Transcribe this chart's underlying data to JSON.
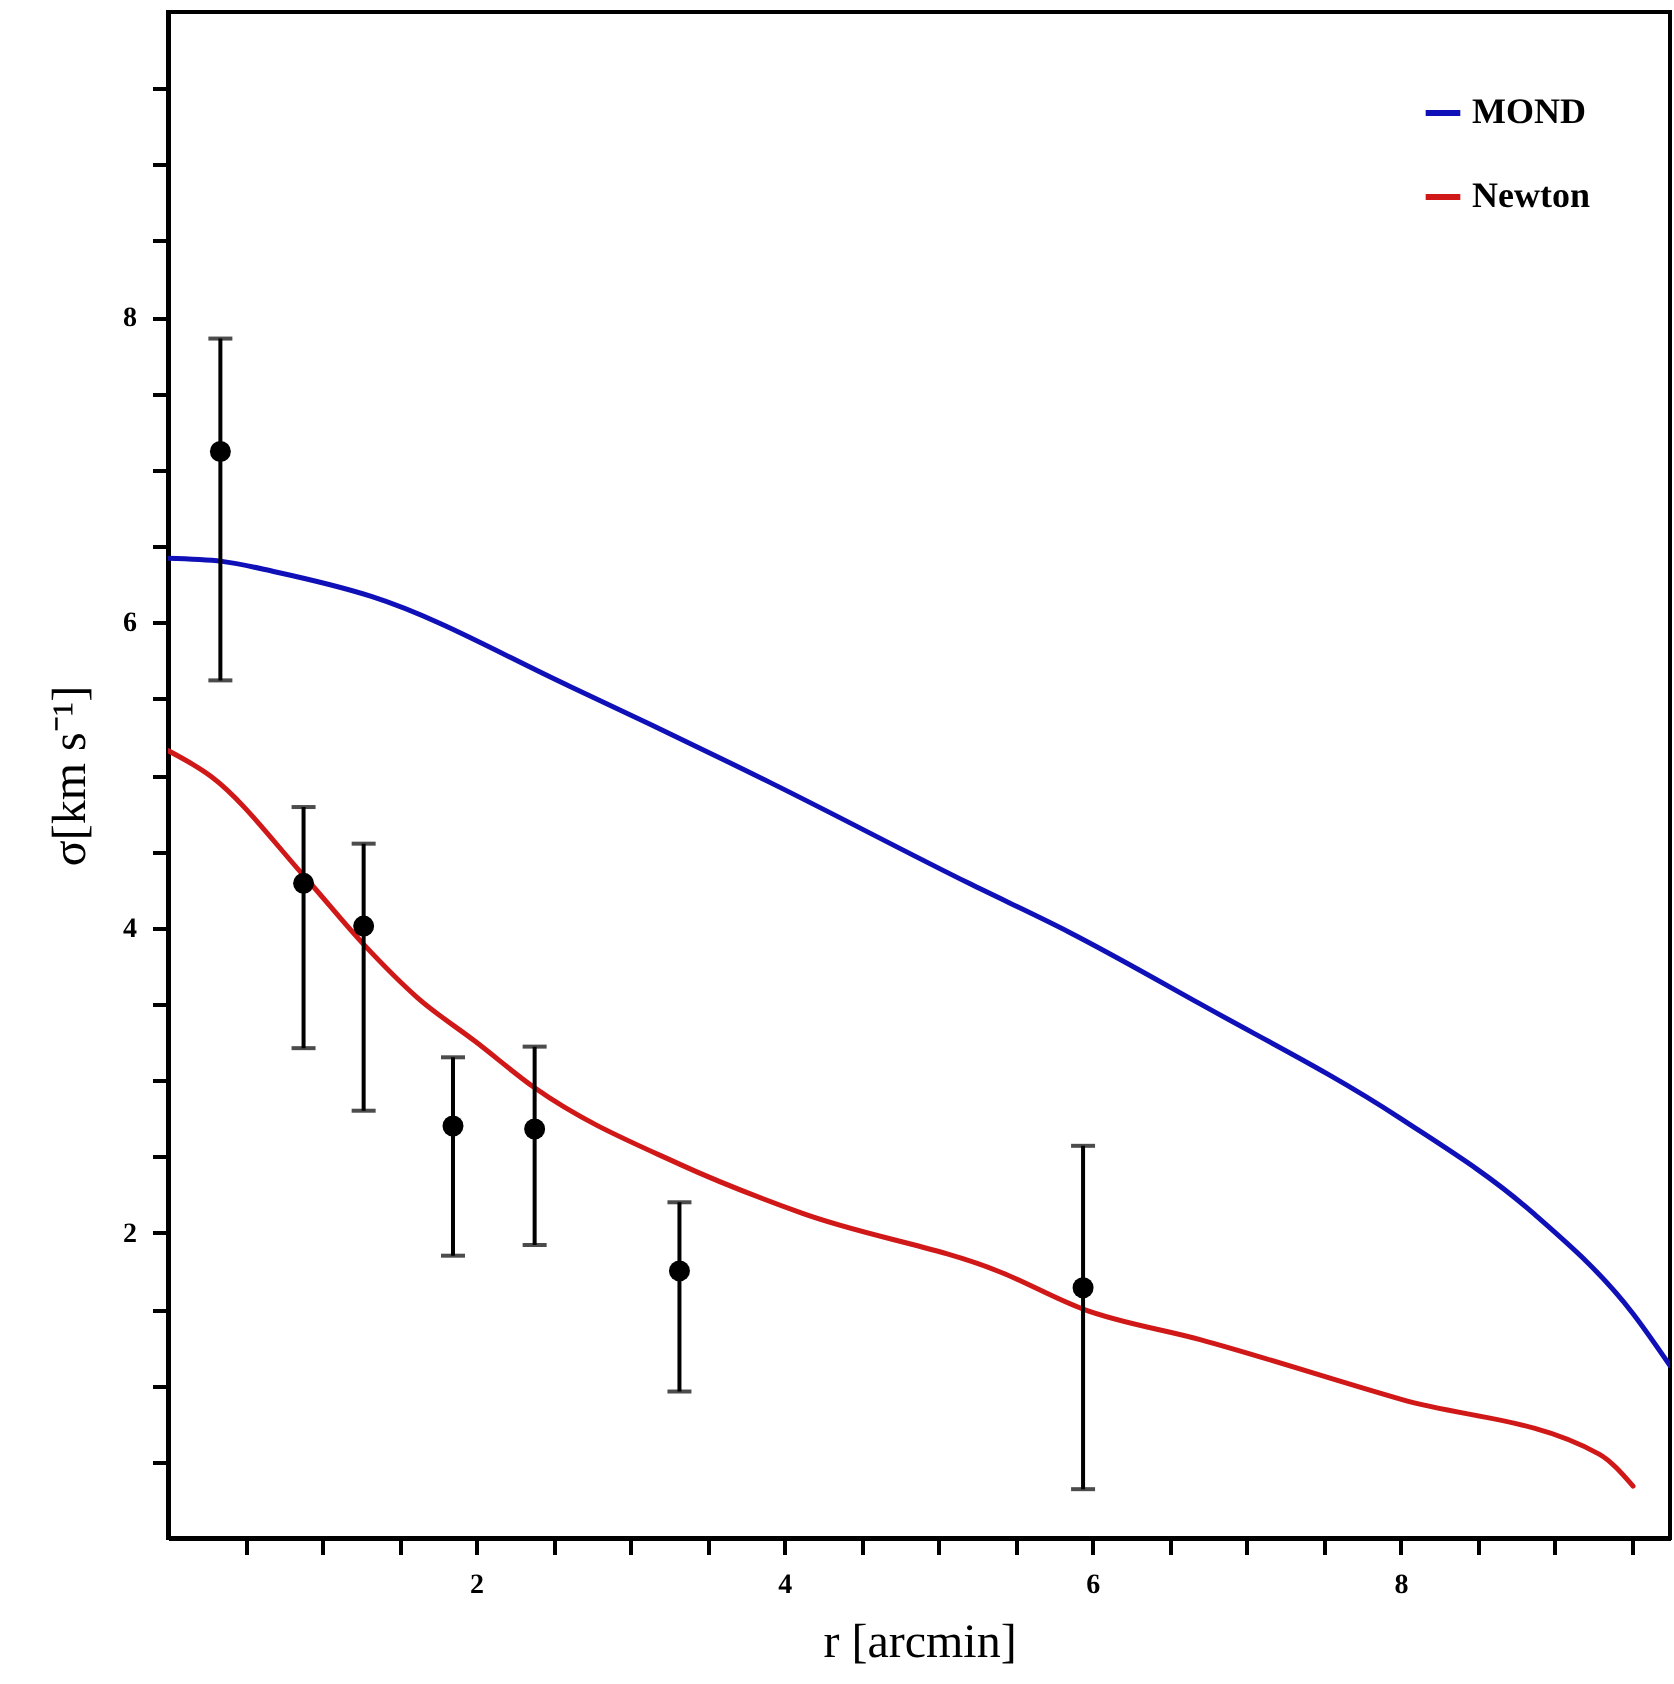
{
  "chart_data": {
    "type": "line",
    "xlabel": "r [arcmin]",
    "ylabel": "σ[km s⁻¹]",
    "xlim": [
      0,
      9.75
    ],
    "ylim": [
      0,
      10
    ],
    "xticks": [
      {
        "value": 0.5,
        "label": null
      },
      {
        "value": 1,
        "label": null
      },
      {
        "value": 1.5,
        "label": null
      },
      2,
      {
        "value": 2.5,
        "label": null
      },
      {
        "value": 3,
        "label": null
      },
      {
        "value": 3.5,
        "label": null
      },
      4,
      {
        "value": 4.5,
        "label": null
      },
      {
        "value": 5,
        "label": null
      },
      {
        "value": 5.5,
        "label": null
      },
      6,
      {
        "value": 6.5,
        "label": null
      },
      {
        "value": 7,
        "label": null
      },
      {
        "value": 7.5,
        "label": null
      },
      8,
      {
        "value": 8.5,
        "label": null
      },
      {
        "value": 9,
        "label": null
      },
      {
        "value": 9.5,
        "label": null
      }
    ],
    "yticks": [
      {
        "value": 0.5,
        "label": null
      },
      {
        "value": 1,
        "label": null
      },
      {
        "value": 1.5,
        "label": null
      },
      2,
      {
        "value": 2.5,
        "label": null
      },
      {
        "value": 3,
        "label": null
      },
      {
        "value": 3.5,
        "label": null
      },
      4,
      {
        "value": 4.5,
        "label": null
      },
      {
        "value": 5,
        "label": null
      },
      {
        "value": 5.5,
        "label": null
      },
      6,
      {
        "value": 6.5,
        "label": null
      },
      {
        "value": 7,
        "label": null
      },
      {
        "value": 7.5,
        "label": null
      },
      8,
      {
        "value": 8.5,
        "label": null
      },
      {
        "value": 9,
        "label": null
      },
      {
        "value": 9.5,
        "label": null
      }
    ],
    "legend": "top right",
    "line_style": "solid",
    "series": [
      {
        "name": "MOND",
        "color": "#1010b8",
        "x": [
          0,
          0.35,
          0.7,
          1.32,
          2.61,
          3.91,
          5.2,
          5.85,
          6.7,
          8.0,
          8.86,
          9.51,
          9.75
        ],
        "values": [
          6.42,
          6.4,
          6.33,
          6.17,
          5.58,
          4.95,
          4.29,
          3.97,
          3.5,
          2.75,
          2.13,
          1.47,
          1.13
        ]
      },
      {
        "name": "Newton",
        "color": "#d01818",
        "x": [
          0,
          0.28,
          0.89,
          1.27,
          1.62,
          2.0,
          2.38,
          3.32,
          4.11,
          5.41,
          5.94,
          6.7,
          8.0,
          9.29,
          9.51
        ],
        "values": [
          5.16,
          4.99,
          4.33,
          3.89,
          3.54,
          3.25,
          2.95,
          2.45,
          2.13,
          1.74,
          1.5,
          1.3,
          0.91,
          0.55,
          0.34
        ]
      },
      {
        "type": "scatter",
        "color": "#000000",
        "marker": "circle",
        "x": [
          0.34,
          0.88,
          1.27,
          1.85,
          2.38,
          3.32,
          5.94
        ],
        "values": [
          7.12,
          4.29,
          4.01,
          2.7,
          2.68,
          1.75,
          1.64
        ],
        "errors": [
          [
            5.62,
            7.86
          ],
          [
            3.21,
            4.79
          ],
          [
            2.8,
            4.55
          ],
          [
            1.85,
            3.15
          ],
          [
            1.92,
            3.22
          ],
          [
            0.96,
            2.2
          ],
          [
            0.32,
            2.57
          ]
        ]
      }
    ]
  }
}
